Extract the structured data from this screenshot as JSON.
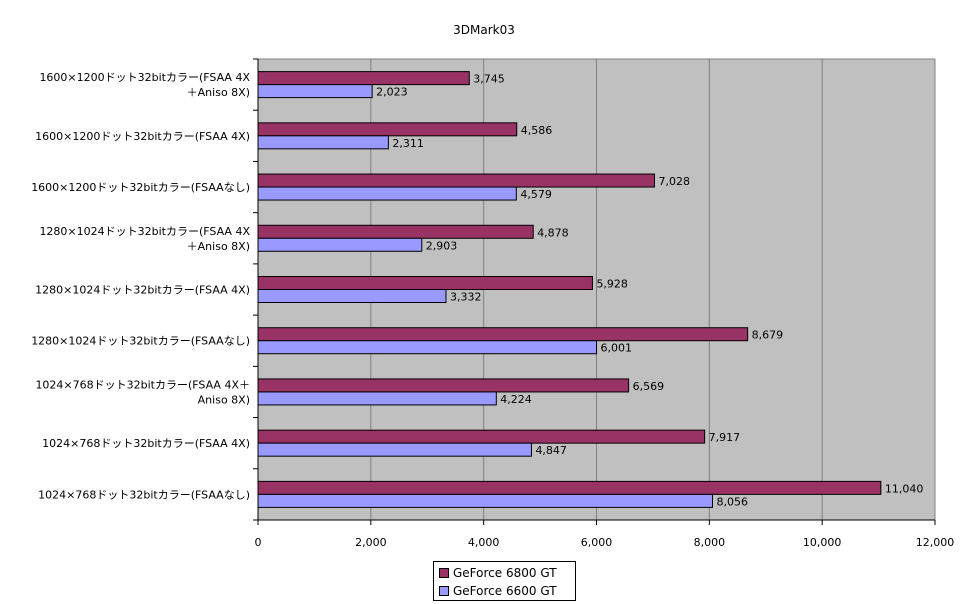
{
  "chart_data": {
    "type": "bar",
    "orientation": "horizontal",
    "title": "3DMark03",
    "categories": [
      [
        "1600×1200ドット32bitカラー(FSAA 4X",
        "＋Aniso 8X)"
      ],
      [
        "1600×1200ドット32bitカラー(FSAA 4X)"
      ],
      [
        "1600×1200ドット32bitカラー(FSAAなし)"
      ],
      [
        "1280×1024ドット32bitカラー(FSAA 4X",
        "＋Aniso 8X)"
      ],
      [
        "1280×1024ドット32bitカラー(FSAA 4X)"
      ],
      [
        "1280×1024ドット32bitカラー(FSAAなし)"
      ],
      [
        "1024×768ドット32bitカラー(FSAA 4X＋",
        "Aniso 8X)"
      ],
      [
        "1024×768ドット32bitカラー(FSAA 4X)"
      ],
      [
        "1024×768ドット32bitカラー(FSAAなし)"
      ]
    ],
    "series": [
      {
        "name": "GeForce 6800 GT",
        "color": "#993366",
        "values": [
          3745,
          4586,
          7028,
          4878,
          5928,
          8679,
          6569,
          7917,
          11040
        ],
        "labels": [
          "3,745",
          "4,586",
          "7,028",
          "4,878",
          "5,928",
          "8,679",
          "6,569",
          "7,917",
          "11,040"
        ]
      },
      {
        "name": "GeForce 6600 GT",
        "color": "#9999ff",
        "values": [
          2023,
          2311,
          4579,
          2903,
          3332,
          6001,
          4224,
          4847,
          8056
        ],
        "labels": [
          "2,023",
          "2,311",
          "4,579",
          "2,903",
          "3,332",
          "6,001",
          "4,224",
          "4,847",
          "8,056"
        ]
      }
    ],
    "x_ticks": [
      0,
      2000,
      4000,
      6000,
      8000,
      10000,
      12000
    ],
    "x_tick_labels": [
      "0",
      "2,000",
      "4,000",
      "6,000",
      "8,000",
      "10,000",
      "12,000"
    ],
    "xlim": [
      0,
      12000
    ],
    "grid": true,
    "plot_background": "#c0c0c0",
    "legend_position": "bottom-center"
  }
}
